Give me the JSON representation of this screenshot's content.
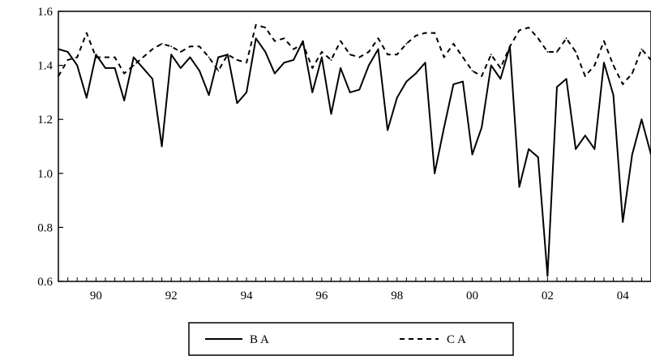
{
  "chart_data": {
    "type": "line",
    "title": "",
    "xlabel": "",
    "ylabel": "",
    "ylim": [
      0.6,
      1.6
    ],
    "yticks": [
      "0.6",
      "0.8",
      "1.0",
      "1.2",
      "1.4",
      "1.6"
    ],
    "xticks": [
      "90",
      "92",
      "94",
      "96",
      "98",
      "00",
      "02",
      "04"
    ],
    "x_range": [
      "1989Q1",
      "2004Q4"
    ],
    "legend_position": "bottom-center",
    "grid": false,
    "x": [
      "1989Q1",
      "1989Q2",
      "1989Q3",
      "1989Q4",
      "1990Q1",
      "1990Q2",
      "1990Q3",
      "1990Q4",
      "1991Q1",
      "1991Q2",
      "1991Q3",
      "1991Q4",
      "1992Q1",
      "1992Q2",
      "1992Q3",
      "1992Q4",
      "1993Q1",
      "1993Q2",
      "1993Q3",
      "1993Q4",
      "1994Q1",
      "1994Q2",
      "1994Q3",
      "1994Q4",
      "1995Q1",
      "1995Q2",
      "1995Q3",
      "1995Q4",
      "1996Q1",
      "1996Q2",
      "1996Q3",
      "1996Q4",
      "1997Q1",
      "1997Q2",
      "1997Q3",
      "1997Q4",
      "1998Q1",
      "1998Q2",
      "1998Q3",
      "1998Q4",
      "1999Q1",
      "1999Q2",
      "1999Q3",
      "1999Q4",
      "2000Q1",
      "2000Q2",
      "2000Q3",
      "2000Q4",
      "2001Q1",
      "2001Q2",
      "2001Q3",
      "2001Q4",
      "2002Q1",
      "2002Q2",
      "2002Q3",
      "2002Q4",
      "2003Q1",
      "2003Q2",
      "2003Q3",
      "2003Q4",
      "2004Q1",
      "2004Q2",
      "2004Q3",
      "2004Q4"
    ],
    "series": [
      {
        "name": "BA",
        "style": "solid",
        "color": "#000000",
        "values": [
          1.46,
          1.45,
          1.4,
          1.28,
          1.44,
          1.39,
          1.39,
          1.27,
          1.43,
          1.39,
          1.35,
          1.1,
          1.44,
          1.39,
          1.43,
          1.38,
          1.29,
          1.43,
          1.44,
          1.26,
          1.3,
          1.5,
          1.45,
          1.37,
          1.41,
          1.42,
          1.49,
          1.3,
          1.43,
          1.22,
          1.39,
          1.3,
          1.31,
          1.4,
          1.46,
          1.16,
          1.28,
          1.34,
          1.37,
          1.41,
          1.0,
          1.17,
          1.33,
          1.34,
          1.07,
          1.17,
          1.4,
          1.35,
          1.47,
          0.95,
          1.09,
          1.06,
          0.62,
          1.32,
          1.35,
          1.09,
          1.14,
          1.09,
          1.41,
          1.29,
          0.82,
          1.07,
          1.2,
          1.07
        ]
      },
      {
        "name": "CA",
        "style": "dashed",
        "color": "#000000",
        "values": [
          1.36,
          1.42,
          1.43,
          1.52,
          1.43,
          1.43,
          1.43,
          1.37,
          1.4,
          1.43,
          1.46,
          1.48,
          1.47,
          1.45,
          1.47,
          1.47,
          1.43,
          1.38,
          1.44,
          1.42,
          1.41,
          1.55,
          1.54,
          1.49,
          1.5,
          1.46,
          1.48,
          1.39,
          1.45,
          1.42,
          1.49,
          1.44,
          1.43,
          1.45,
          1.5,
          1.44,
          1.44,
          1.48,
          1.51,
          1.52,
          1.52,
          1.43,
          1.48,
          1.43,
          1.38,
          1.36,
          1.44,
          1.39,
          1.47,
          1.53,
          1.54,
          1.5,
          1.45,
          1.45,
          1.5,
          1.45,
          1.36,
          1.4,
          1.49,
          1.4,
          1.33,
          1.37,
          1.46,
          1.42
        ]
      }
    ]
  }
}
